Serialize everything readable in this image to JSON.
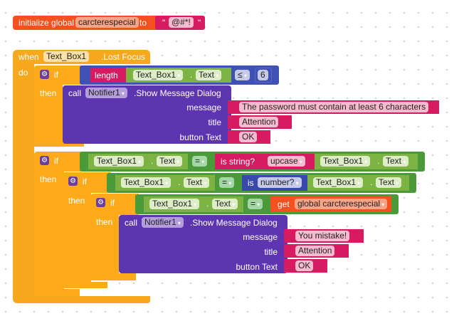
{
  "init": {
    "label": "initialize global",
    "name": "carcterespecial",
    "to": "to",
    "value": "@#*!"
  },
  "event": {
    "when": "when",
    "component": "Text_Box1",
    "event": ".Lost Focus",
    "do": "do"
  },
  "kw": {
    "if": "if",
    "then": "then",
    "call": "call",
    "dot": ".",
    "quote": "\""
  },
  "if1": {
    "length": "length",
    "component": "Text_Box1",
    "prop": "Text",
    "op": "≤",
    "number": "6",
    "call": {
      "component": "Notifier1",
      "method": ".Show Message Dialog",
      "message_label": "message",
      "title_label": "title",
      "button_label": "button Text",
      "message": "The password must contain at least 6 characters",
      "title": "Attention",
      "button": "OK"
    }
  },
  "if2": {
    "component": "Text_Box1",
    "prop": "Text",
    "op": "=",
    "is_string": "is string?",
    "upcase": "upcase",
    "component2": "Text_Box1",
    "prop2": "Text"
  },
  "if3": {
    "component": "Text_Box1",
    "prop": "Text",
    "op": "=",
    "is": "is",
    "number": "number?",
    "component2": "Text_Box1",
    "prop2": "Text"
  },
  "if4": {
    "component": "Text_Box1",
    "prop": "Text",
    "op": "=",
    "get": "get",
    "var": "global carcterespecial",
    "call": {
      "component": "Notifier1",
      "method": ".Show Message Dialog",
      "message_label": "message",
      "title_label": "title",
      "button_label": "button Text",
      "message": "You mistake!",
      "title": "Attention",
      "button": "OK"
    }
  }
}
